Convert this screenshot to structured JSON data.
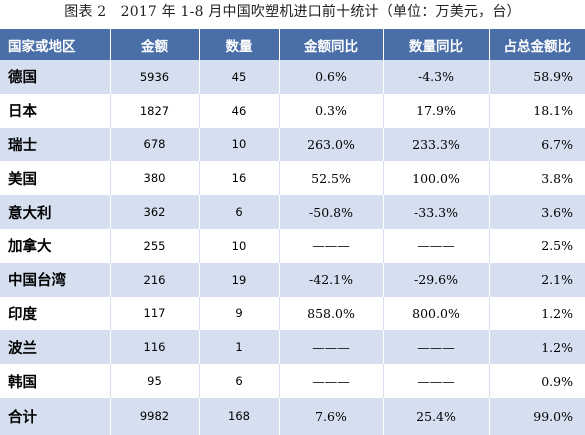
{
  "caption": "图表 2　2017 年 1-8 月中国吹塑机进口前十统计（单位：万美元，台）",
  "columns": [
    "国家或地区",
    "金额",
    "数量",
    "金额同比",
    "数量同比",
    "占总金额比"
  ],
  "rows": [
    {
      "name": "德国",
      "amount": "5936",
      "qty": "45",
      "amount_yoy": "0.6%",
      "qty_yoy": "-4.3%",
      "share": "58.9%"
    },
    {
      "name": "日本",
      "amount": "1827",
      "qty": "46",
      "amount_yoy": "0.3%",
      "qty_yoy": "17.9%",
      "share": "18.1%"
    },
    {
      "name": "瑞士",
      "amount": "678",
      "qty": "10",
      "amount_yoy": "263.0%",
      "qty_yoy": "233.3%",
      "share": "6.7%"
    },
    {
      "name": "美国",
      "amount": "380",
      "qty": "16",
      "amount_yoy": "52.5%",
      "qty_yoy": "100.0%",
      "share": "3.8%"
    },
    {
      "name": "意大利",
      "amount": "362",
      "qty": "6",
      "amount_yoy": "-50.8%",
      "qty_yoy": "-33.3%",
      "share": "3.6%"
    },
    {
      "name": "加拿大",
      "amount": "255",
      "qty": "10",
      "amount_yoy": "———",
      "qty_yoy": "———",
      "share": "2.5%"
    },
    {
      "name": "中国台湾",
      "amount": "216",
      "qty": "19",
      "amount_yoy": "-42.1%",
      "qty_yoy": "-29.6%",
      "share": "2.1%"
    },
    {
      "name": "印度",
      "amount": "117",
      "qty": "9",
      "amount_yoy": "858.0%",
      "qty_yoy": "800.0%",
      "share": "1.2%"
    },
    {
      "name": "波兰",
      "amount": "116",
      "qty": "1",
      "amount_yoy": "———",
      "qty_yoy": "———",
      "share": "1.2%"
    },
    {
      "name": "韩国",
      "amount": "95",
      "qty": "6",
      "amount_yoy": "———",
      "qty_yoy": "———",
      "share": "0.9%"
    }
  ],
  "total": {
    "name": "合计",
    "amount": "9982",
    "qty": "168",
    "amount_yoy": "7.6%",
    "qty_yoy": "25.4%",
    "share": "99.0%"
  },
  "colors": {
    "header_bg": "#4a6fa8",
    "band_bg": "#d5dff0",
    "header_text": "#ffffff"
  }
}
